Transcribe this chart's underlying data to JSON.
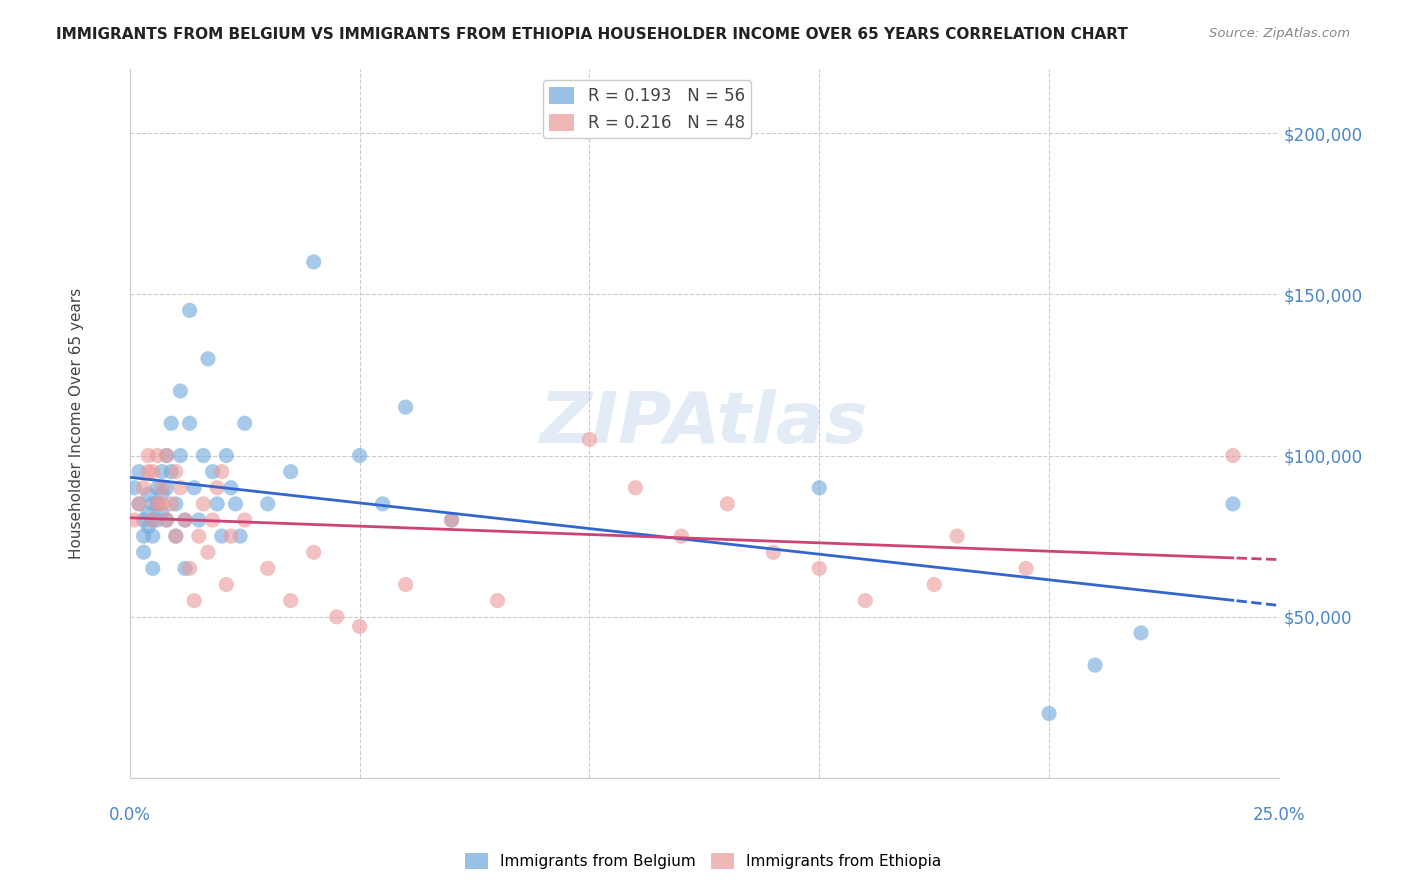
{
  "title": "IMMIGRANTS FROM BELGIUM VS IMMIGRANTS FROM ETHIOPIA HOUSEHOLDER INCOME OVER 65 YEARS CORRELATION CHART",
  "source": "Source: ZipAtlas.com",
  "ylabel": "Householder Income Over 65 years",
  "xlim": [
    0.0,
    0.25
  ],
  "ylim": [
    0,
    220000
  ],
  "yticks": [
    0,
    50000,
    100000,
    150000,
    200000
  ],
  "ytick_labels": [
    "",
    "$50,000",
    "$100,000",
    "$150,000",
    "$200,000"
  ],
  "belgium_color": "#6fa8dc",
  "ethiopia_color": "#ea9999",
  "belgium_line_color": "#3366cc",
  "ethiopia_line_color": "#cc4477",
  "belgium_R": 0.193,
  "belgium_N": 56,
  "ethiopia_R": 0.216,
  "ethiopia_N": 48,
  "watermark": "ZIPAtlas",
  "legend_label_belgium": "Immigrants from Belgium",
  "legend_label_ethiopia": "Immigrants from Ethiopia",
  "background_color": "#ffffff",
  "grid_color": "#cccccc",
  "axis_label_color": "#4a86c8",
  "title_color": "#222222",
  "belgium_scatter_x": [
    0.001,
    0.002,
    0.002,
    0.003,
    0.003,
    0.003,
    0.004,
    0.004,
    0.004,
    0.005,
    0.005,
    0.005,
    0.005,
    0.006,
    0.006,
    0.006,
    0.007,
    0.007,
    0.007,
    0.008,
    0.008,
    0.008,
    0.009,
    0.009,
    0.01,
    0.01,
    0.011,
    0.011,
    0.012,
    0.012,
    0.013,
    0.013,
    0.014,
    0.015,
    0.016,
    0.017,
    0.018,
    0.019,
    0.02,
    0.021,
    0.022,
    0.023,
    0.024,
    0.025,
    0.03,
    0.035,
    0.04,
    0.05,
    0.055,
    0.06,
    0.07,
    0.15,
    0.2,
    0.21,
    0.22,
    0.24
  ],
  "belgium_scatter_y": [
    90000,
    95000,
    85000,
    80000,
    75000,
    70000,
    88000,
    82000,
    78000,
    85000,
    80000,
    75000,
    65000,
    90000,
    85000,
    80000,
    95000,
    88000,
    82000,
    100000,
    90000,
    80000,
    110000,
    95000,
    85000,
    75000,
    120000,
    100000,
    80000,
    65000,
    145000,
    110000,
    90000,
    80000,
    100000,
    130000,
    95000,
    85000,
    75000,
    100000,
    90000,
    85000,
    75000,
    110000,
    85000,
    95000,
    160000,
    100000,
    85000,
    115000,
    80000,
    90000,
    20000,
    35000,
    45000,
    85000
  ],
  "ethiopia_scatter_x": [
    0.001,
    0.002,
    0.003,
    0.004,
    0.004,
    0.005,
    0.005,
    0.006,
    0.006,
    0.007,
    0.007,
    0.008,
    0.008,
    0.009,
    0.01,
    0.01,
    0.011,
    0.012,
    0.013,
    0.014,
    0.015,
    0.016,
    0.017,
    0.018,
    0.019,
    0.02,
    0.021,
    0.022,
    0.025,
    0.03,
    0.035,
    0.04,
    0.045,
    0.05,
    0.06,
    0.07,
    0.08,
    0.1,
    0.11,
    0.12,
    0.13,
    0.14,
    0.15,
    0.16,
    0.175,
    0.18,
    0.195,
    0.24
  ],
  "ethiopia_scatter_y": [
    80000,
    85000,
    90000,
    95000,
    100000,
    80000,
    95000,
    85000,
    100000,
    90000,
    85000,
    80000,
    100000,
    85000,
    75000,
    95000,
    90000,
    80000,
    65000,
    55000,
    75000,
    85000,
    70000,
    80000,
    90000,
    95000,
    60000,
    75000,
    80000,
    65000,
    55000,
    70000,
    50000,
    47000,
    60000,
    80000,
    55000,
    105000,
    90000,
    75000,
    85000,
    70000,
    65000,
    55000,
    60000,
    75000,
    65000,
    100000
  ]
}
